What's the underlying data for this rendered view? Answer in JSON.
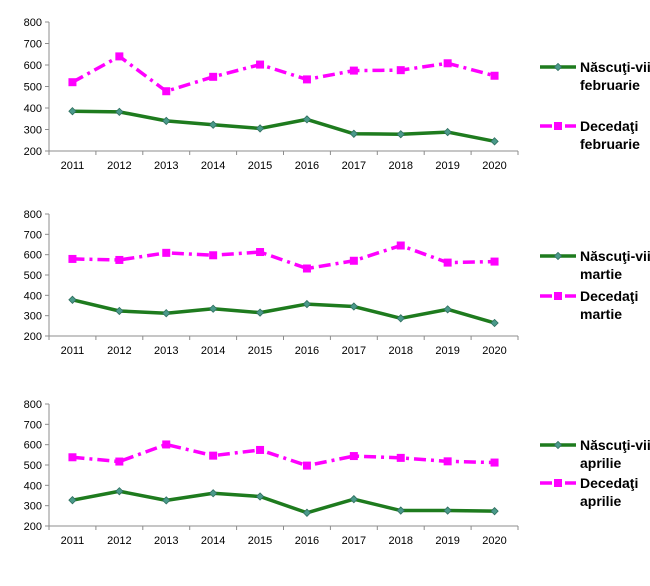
{
  "chart_data": [
    {
      "type": "line",
      "categories": [
        "2011",
        "2012",
        "2013",
        "2014",
        "2015",
        "2016",
        "2017",
        "2018",
        "2019",
        "2020"
      ],
      "ylim": [
        200,
        800
      ],
      "yticks": [
        200,
        300,
        400,
        500,
        600,
        700,
        800
      ],
      "series": [
        {
          "name_lines": [
            "Născuţi-vii",
            "februarie"
          ],
          "color": "#1e7b1e",
          "marker": "diamond",
          "dashed": false,
          "values": [
            385,
            382,
            340,
            322,
            305,
            347,
            280,
            278,
            288,
            245
          ]
        },
        {
          "name_lines": [
            "Decedaţi",
            "februarie"
          ],
          "color": "#ff00ff",
          "marker": "square",
          "dashed": true,
          "values": [
            520,
            640,
            478,
            545,
            602,
            533,
            574,
            576,
            608,
            550
          ]
        }
      ]
    },
    {
      "type": "line",
      "categories": [
        "2011",
        "2012",
        "2013",
        "2014",
        "2015",
        "2016",
        "2017",
        "2018",
        "2019",
        "2020"
      ],
      "ylim": [
        200,
        800
      ],
      "yticks": [
        200,
        300,
        400,
        500,
        600,
        700,
        800
      ],
      "series": [
        {
          "name_lines": [
            "Născuţi-vii",
            "martie"
          ],
          "color": "#1e7b1e",
          "marker": "diamond",
          "dashed": false,
          "values": [
            378,
            323,
            312,
            334,
            315,
            357,
            345,
            287,
            331,
            264
          ]
        },
        {
          "name_lines": [
            "Decedaţi",
            "martie"
          ],
          "color": "#ff00ff",
          "marker": "square",
          "dashed": true,
          "values": [
            579,
            574,
            609,
            597,
            613,
            532,
            570,
            645,
            561,
            566
          ]
        }
      ]
    },
    {
      "type": "line",
      "categories": [
        "2011",
        "2012",
        "2013",
        "2014",
        "2015",
        "2016",
        "2017",
        "2018",
        "2019",
        "2020"
      ],
      "ylim": [
        200,
        800
      ],
      "yticks": [
        200,
        300,
        400,
        500,
        600,
        700,
        800
      ],
      "series": [
        {
          "name_lines": [
            "Născuţi-vii",
            "aprilie"
          ],
          "color": "#1e7b1e",
          "marker": "diamond",
          "dashed": false,
          "values": [
            327,
            371,
            326,
            361,
            345,
            265,
            332,
            276,
            276,
            273
          ]
        },
        {
          "name_lines": [
            "Decedaţi",
            "aprilie"
          ],
          "color": "#ff00ff",
          "marker": "square",
          "dashed": true,
          "values": [
            538,
            517,
            601,
            546,
            574,
            497,
            544,
            535,
            518,
            512
          ]
        }
      ]
    }
  ]
}
